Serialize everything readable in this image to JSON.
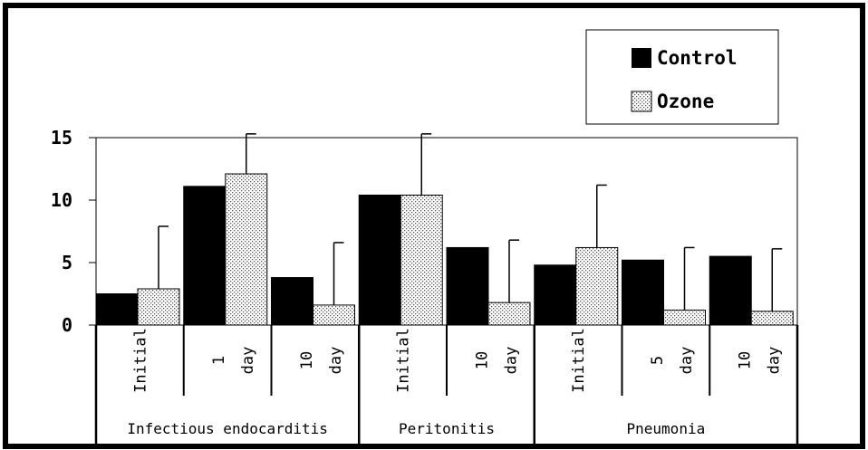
{
  "chart_data": {
    "type": "bar",
    "title": "",
    "xlabel": "",
    "ylabel": "",
    "ylim": [
      0,
      15
    ],
    "yticks": [
      "0",
      "5",
      "10",
      "15"
    ],
    "categories": [
      "Initial",
      "1 day",
      "10 day",
      "Initial",
      "10 day",
      "Initial",
      "5 day",
      "10 day"
    ],
    "groups": [
      {
        "label": "Infectious endocarditis",
        "count": 3
      },
      {
        "label": "Peritonitis",
        "count": 2
      },
      {
        "label": "Pneumonia",
        "count": 3
      }
    ],
    "series": [
      {
        "name": "Control",
        "color": "#000000",
        "pattern": "solid",
        "values": [
          2.5,
          11.1,
          3.8,
          10.4,
          6.2,
          4.8,
          5.2,
          5.5
        ],
        "errors": [
          null,
          null,
          null,
          null,
          null,
          null,
          null,
          null
        ]
      },
      {
        "name": "Ozone",
        "color": "#ffffff",
        "pattern": "dotted",
        "values": [
          2.9,
          12.1,
          1.6,
          10.4,
          1.8,
          6.2,
          1.2,
          1.1
        ],
        "errors": [
          5.0,
          3.2,
          5.0,
          4.9,
          5.0,
          5.0,
          5.0,
          5.0
        ]
      }
    ],
    "legend": {
      "position": "top-right",
      "items": [
        "Control",
        "Ozone"
      ]
    },
    "grid": false
  }
}
